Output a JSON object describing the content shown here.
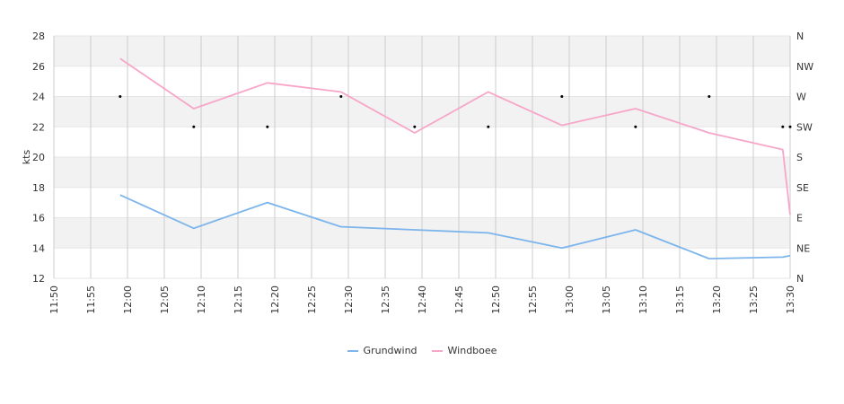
{
  "chart_data": {
    "type": "line",
    "xlabel": "",
    "ylabel": "kts",
    "ylim": [
      12,
      28
    ],
    "yticks": [
      12,
      14,
      16,
      18,
      20,
      22,
      24,
      26,
      28
    ],
    "x_range": [
      "11:50",
      "13:30"
    ],
    "x_ticks": [
      "11:50",
      "11:55",
      "12:00",
      "12:05",
      "12:10",
      "12:15",
      "12:20",
      "12:25",
      "12:30",
      "12:35",
      "12:40",
      "12:45",
      "12:50",
      "12:55",
      "13:00",
      "13:05",
      "13:10",
      "13:15",
      "13:20",
      "13:25",
      "13:30"
    ],
    "x": [
      "11:59",
      "12:09",
      "12:19",
      "12:29",
      "12:39",
      "12:49",
      "12:59",
      "13:09",
      "13:19",
      "13:29",
      "13:30"
    ],
    "series": [
      {
        "name": "Grundwind",
        "color": "#7cb5ec",
        "values": [
          17.5,
          15.3,
          17.0,
          15.4,
          15.2,
          15.0,
          14.0,
          15.2,
          13.3,
          13.4,
          13.5
        ]
      },
      {
        "name": "Windboee",
        "color": "#f7a6c9",
        "values": [
          26.5,
          23.2,
          24.9,
          24.3,
          21.6,
          24.3,
          22.1,
          23.2,
          21.6,
          20.5,
          16.2
        ]
      }
    ],
    "right_axis": {
      "labels": [
        "N",
        "NE",
        "E",
        "SE",
        "S",
        "SW",
        "W",
        "NW",
        "N"
      ],
      "range": [
        0,
        360
      ]
    },
    "direction_markers": [
      {
        "x": "11:59",
        "deg": 270
      },
      {
        "x": "12:09",
        "deg": 225
      },
      {
        "x": "12:19",
        "deg": 225
      },
      {
        "x": "12:29",
        "deg": 270
      },
      {
        "x": "12:39",
        "deg": 225
      },
      {
        "x": "12:49",
        "deg": 225
      },
      {
        "x": "12:59",
        "deg": 270
      },
      {
        "x": "13:09",
        "deg": 225
      },
      {
        "x": "13:19",
        "deg": 270
      },
      {
        "x": "13:29",
        "deg": 225
      },
      {
        "x": "13:30",
        "deg": 225
      }
    ],
    "colors": {
      "band": "#f2f2f2",
      "grid_h": "#e6e6e6",
      "grid_v": "#cccccc",
      "marker": "#000000"
    },
    "grid": true,
    "legend_position": "bottom-center"
  }
}
